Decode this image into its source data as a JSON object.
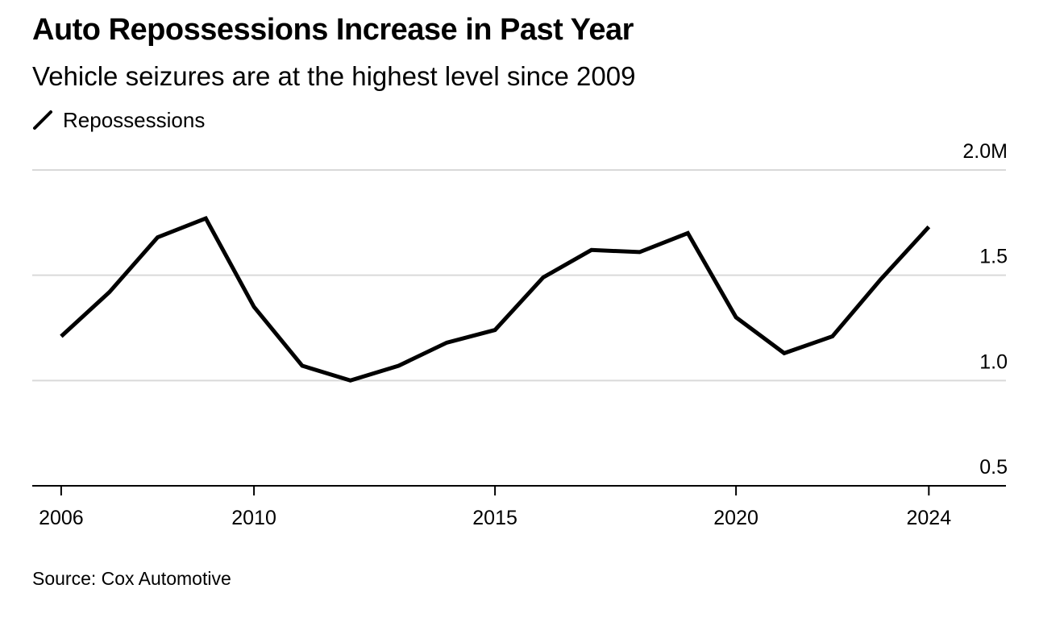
{
  "chart_data": {
    "type": "line",
    "title": "Auto Repossessions Increase in Past Year",
    "subtitle": "Vehicle seizures are at the highest level since 2009",
    "legend": [
      {
        "name": "Repossessions",
        "color": "#000000"
      }
    ],
    "legend_position": "top-left",
    "x": [
      2006,
      2007,
      2008,
      2009,
      2010,
      2011,
      2012,
      2013,
      2014,
      2015,
      2016,
      2017,
      2018,
      2019,
      2020,
      2021,
      2022,
      2023,
      2024
    ],
    "series": [
      {
        "name": "Repossessions",
        "values": [
          1.21,
          1.42,
          1.68,
          1.77,
          1.35,
          1.07,
          1.0,
          1.07,
          1.18,
          1.24,
          1.49,
          1.62,
          1.61,
          1.7,
          1.3,
          1.13,
          1.21,
          1.48,
          1.73
        ]
      }
    ],
    "x_ticks": [
      {
        "value": 2006,
        "label": "2006"
      },
      {
        "value": 2010,
        "label": "2010"
      },
      {
        "value": 2015,
        "label": "2015"
      },
      {
        "value": 2020,
        "label": "2020"
      },
      {
        "value": 2024,
        "label": "2024"
      }
    ],
    "y_ticks": [
      {
        "value": 2.0,
        "label": "2.0M"
      },
      {
        "value": 1.5,
        "label": "1.5"
      },
      {
        "value": 1.0,
        "label": "1.0"
      },
      {
        "value": 0.5,
        "label": "0.5"
      }
    ],
    "xlim": [
      2005.4,
      2025.6
    ],
    "ylim": [
      0.5,
      2.0
    ],
    "grid": true,
    "xlabel": "",
    "ylabel": "",
    "source": "Source: Cox Automotive"
  }
}
